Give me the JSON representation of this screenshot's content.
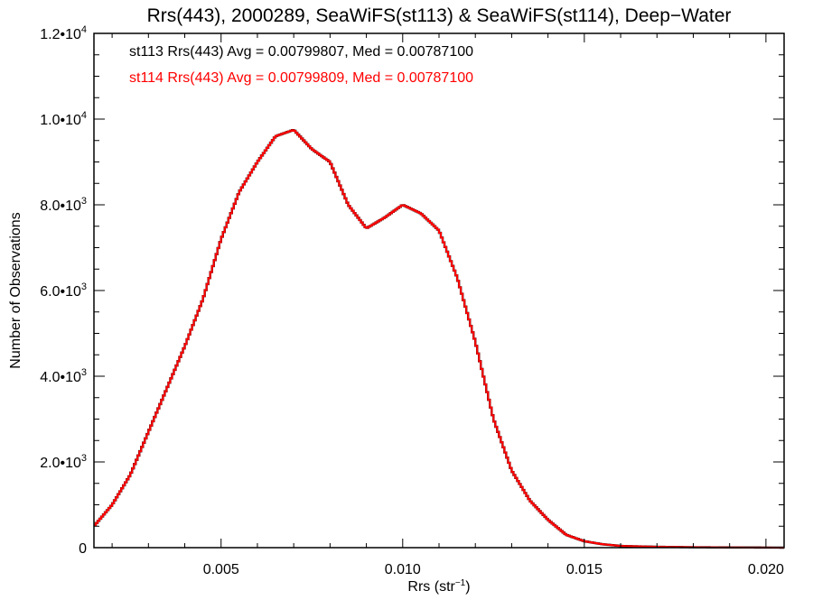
{
  "chart_data": {
    "type": "line",
    "title": "Rrs(443), 2000289, SeaWiFS(st113) & SeaWiFS(st114), Deep−Water",
    "xlabel": "Rrs (str",
    "xlabel_sup": "−1",
    "xlabel_end": ")",
    "ylabel": "Number of Observations",
    "xlim": [
      0.0015,
      0.0205
    ],
    "ylim": [
      0,
      12000
    ],
    "x_ticks": [
      {
        "value": 0.005,
        "label": "0.005"
      },
      {
        "value": 0.01,
        "label": "0.010"
      },
      {
        "value": 0.015,
        "label": "0.015"
      },
      {
        "value": 0.02,
        "label": "0.020"
      }
    ],
    "y_ticks": [
      {
        "value": 0,
        "mant": "0",
        "exp": ""
      },
      {
        "value": 2000,
        "mant": "2.0•10",
        "exp": "3"
      },
      {
        "value": 4000,
        "mant": "4.0•10",
        "exp": "3"
      },
      {
        "value": 6000,
        "mant": "6.0•10",
        "exp": "3"
      },
      {
        "value": 8000,
        "mant": "8.0•10",
        "exp": "3"
      },
      {
        "value": 10000,
        "mant": "1.0•10",
        "exp": "4"
      },
      {
        "value": 12000,
        "mant": "1.2•10",
        "exp": "4"
      }
    ],
    "annotations": [
      {
        "text": "st113 Rrs(443) Avg = 0.00799807, Med = 0.00787100",
        "color": "#000000"
      },
      {
        "text": "st114 Rrs(443) Avg = 0.00799809, Med = 0.00787100",
        "color": "#ff0000"
      }
    ],
    "series": [
      {
        "color": "#000000",
        "x": [
          0.0015,
          0.002,
          0.0025,
          0.003,
          0.0035,
          0.004,
          0.0045,
          0.005,
          0.0055,
          0.006,
          0.0065,
          0.007,
          0.0075,
          0.008,
          0.0085,
          0.009,
          0.0095,
          0.01,
          0.0105,
          0.011,
          0.0115,
          0.012,
          0.0125,
          0.013,
          0.0135,
          0.014,
          0.0145,
          0.015,
          0.0155,
          0.016,
          0.017,
          0.018,
          0.019,
          0.02,
          0.0205
        ],
        "y": [
          500,
          1000,
          1700,
          2700,
          3700,
          4700,
          5800,
          7200,
          8300,
          9000,
          9600,
          9750,
          9300,
          9000,
          8000,
          7450,
          7700,
          8000,
          7800,
          7400,
          6300,
          4800,
          3000,
          1800,
          1100,
          650,
          300,
          150,
          80,
          40,
          20,
          10,
          5,
          2,
          0
        ]
      },
      {
        "color": "#ff0000",
        "x": [
          0.0015,
          0.002,
          0.0025,
          0.003,
          0.0035,
          0.004,
          0.0045,
          0.005,
          0.0055,
          0.006,
          0.0065,
          0.007,
          0.0075,
          0.008,
          0.0085,
          0.009,
          0.0095,
          0.01,
          0.0105,
          0.011,
          0.0115,
          0.012,
          0.0125,
          0.013,
          0.0135,
          0.014,
          0.0145,
          0.015,
          0.0155,
          0.016,
          0.017,
          0.018,
          0.019,
          0.02,
          0.0205
        ],
        "y": [
          500,
          1000,
          1700,
          2700,
          3700,
          4700,
          5800,
          7200,
          8300,
          9000,
          9600,
          9750,
          9300,
          9000,
          8000,
          7450,
          7700,
          8000,
          7800,
          7400,
          6300,
          4800,
          3000,
          1800,
          1100,
          650,
          300,
          150,
          80,
          40,
          20,
          10,
          5,
          2,
          0
        ]
      }
    ]
  }
}
